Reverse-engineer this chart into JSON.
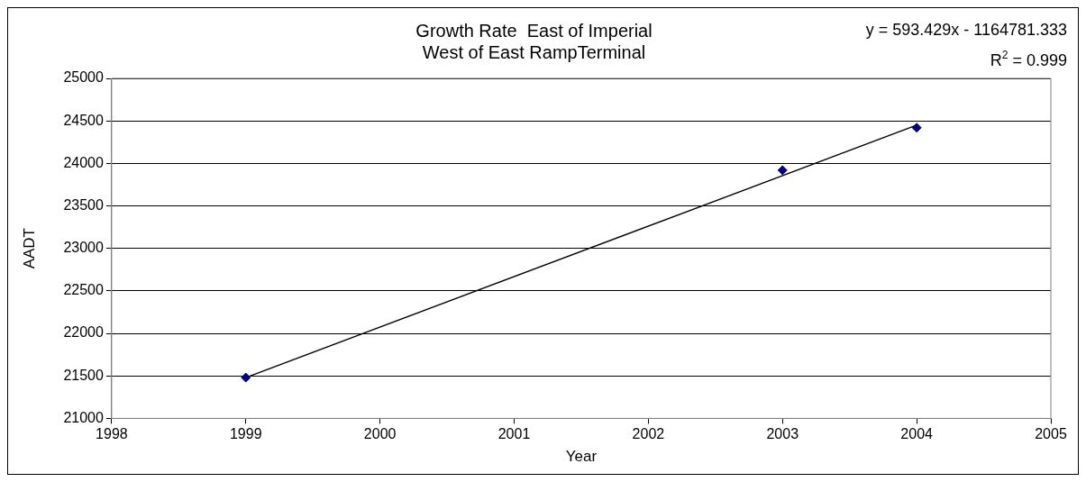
{
  "chart_data": {
    "type": "scatter",
    "title": "Growth Rate  East of Imperial\nWest of East RampTerminal",
    "xlabel": "Year",
    "ylabel": "AADT",
    "x": [
      1999,
      2003,
      2004
    ],
    "series": [
      {
        "type": "scatter",
        "color": "#000080",
        "values": [
          21480,
          23920,
          24420
        ]
      },
      {
        "type": "line",
        "color": "#000000",
        "x": [
          1999,
          2004
        ],
        "values": [
          21480,
          24450
        ],
        "marker": "none"
      }
    ],
    "xlim": [
      1998,
      2005
    ],
    "xticks": [
      1998,
      1999,
      2000,
      2001,
      2002,
      2003,
      2004,
      2005
    ],
    "ylim": [
      21000,
      25000
    ],
    "yticks": [
      21000,
      21500,
      22000,
      22500,
      23000,
      23500,
      24000,
      24500,
      25000
    ],
    "grid": "y",
    "legend": false,
    "marker": "diamond",
    "annotations": [
      "y = 593.429x - 1164781.333",
      "R$^{2}$ = 0.999"
    ]
  }
}
